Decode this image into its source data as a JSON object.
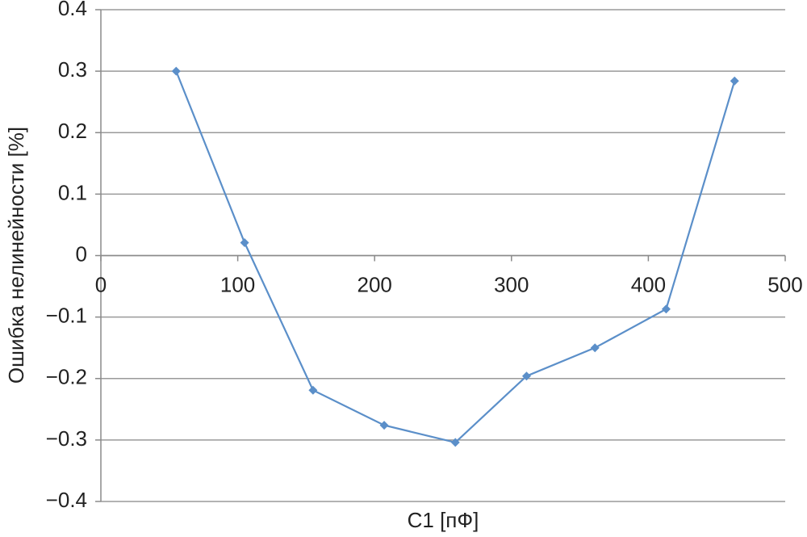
{
  "chart_data": {
    "type": "line",
    "x_label": "C1 [пФ]",
    "y_label": "Ошибка нелинейности [%]",
    "x": [
      55,
      105,
      155,
      207,
      259,
      311,
      361,
      413,
      463
    ],
    "series": [
      {
        "color": "#5b8fc9",
        "values": [
          0.3,
          0.021,
          -0.219,
          -0.276,
          -0.304,
          -0.196,
          -0.15,
          -0.087,
          0.284
        ]
      }
    ],
    "xlim": [
      0,
      500
    ],
    "xticks": [
      0,
      100,
      200,
      300,
      400,
      500
    ],
    "ylim": [
      -0.4,
      0.4
    ],
    "yticks": [
      {
        "value": -0.4,
        "label": "−0.4"
      },
      {
        "value": -0.3,
        "label": "−0.3"
      },
      {
        "value": -0.2,
        "label": "−0.2"
      },
      {
        "value": -0.1,
        "label": "−0.1"
      },
      0,
      0.1,
      0.2,
      0.3,
      0.4
    ],
    "grid": true
  }
}
